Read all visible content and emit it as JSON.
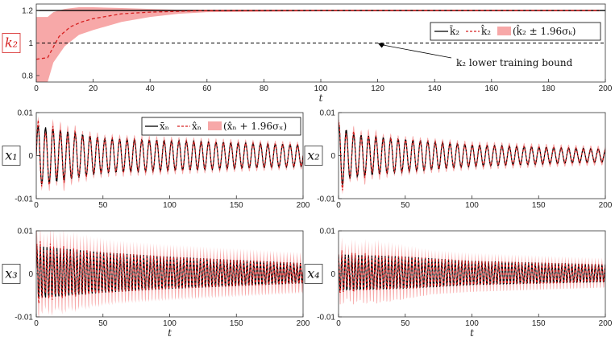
{
  "colors": {
    "truth": "#000000",
    "estimate": "#d62020",
    "band": "#f7a8a8",
    "axis": "#333333",
    "grid": "#d0d0d0"
  },
  "chart_data": [
    {
      "id": "k2",
      "type": "line",
      "ylabel": "k₂",
      "xlabel": "t",
      "xlim": [
        0,
        200
      ],
      "ylim": [
        0.76,
        1.24
      ],
      "xticks": [
        0,
        20,
        40,
        60,
        80,
        100,
        120,
        140,
        160,
        180,
        200
      ],
      "yticks": [
        0.8,
        1,
        1.2
      ],
      "ytick_labels": [
        "0.8",
        "1",
        "1.2"
      ],
      "grid": false,
      "legend_position": "top-right",
      "legend": [
        "k̄₂",
        "k̂₂",
        "(k̂₂ ± 1.96σₖ)"
      ],
      "series": [
        {
          "name": "k̄₂",
          "values": [
            [
              0,
              1.2
            ],
            [
              200,
              1.2
            ]
          ]
        },
        {
          "name": "k̂₂",
          "values": [
            [
              0,
              0.9
            ],
            [
              4,
              0.91
            ],
            [
              8,
              1.04
            ],
            [
              12,
              1.1
            ],
            [
              16,
              1.13
            ],
            [
              20,
              1.15
            ],
            [
              30,
              1.18
            ],
            [
              40,
              1.19
            ],
            [
              50,
              1.195
            ],
            [
              60,
              1.2
            ],
            [
              100,
              1.2
            ],
            [
              198,
              1.2
            ]
          ]
        }
      ],
      "band": [
        [
          0,
          0.76,
          1.16
        ],
        [
          4,
          0.76,
          1.16
        ],
        [
          6,
          0.88,
          1.19
        ],
        [
          10,
          0.98,
          1.21
        ],
        [
          15,
          1.05,
          1.22
        ],
        [
          20,
          1.08,
          1.22
        ],
        [
          30,
          1.13,
          1.215
        ],
        [
          40,
          1.16,
          1.21
        ],
        [
          50,
          1.18,
          1.205
        ],
        [
          60,
          1.19,
          1.205
        ],
        [
          100,
          1.195,
          1.205
        ],
        [
          198,
          1.195,
          1.205
        ]
      ],
      "reference": {
        "y": 1,
        "style": "dashed"
      },
      "annotation": {
        "text": "k₂ lower training bound",
        "x": 120,
        "y": 1.0
      }
    },
    {
      "id": "x1",
      "type": "line",
      "ylabel": "x₁",
      "xlabel": "",
      "xlim": [
        0,
        200
      ],
      "ylim": [
        -0.01,
        0.01
      ],
      "xticks": [
        0,
        50,
        100,
        150,
        200
      ],
      "yticks": [
        -0.01,
        0,
        0.01
      ],
      "ytick_labels": [
        "-0.01",
        "0",
        "0.01"
      ],
      "grid": false,
      "legend_position": "top-right",
      "legend": [
        "x̄ₙ",
        "x̂ₙ",
        "(x̂ₙ + 1.96σₓ)"
      ],
      "signal": {
        "freq": 0.18,
        "phase": 0.0,
        "amp": [
          [
            0,
            0.007
          ],
          [
            25,
            0.0055
          ],
          [
            50,
            0.004
          ],
          [
            100,
            0.0035
          ],
          [
            150,
            0.003
          ],
          [
            200,
            0.0025
          ]
        ],
        "band_half": [
          [
            0,
            0.0008
          ],
          [
            20,
            0.0022
          ],
          [
            35,
            0.0012
          ],
          [
            200,
            0.0008
          ]
        ]
      }
    },
    {
      "id": "x2",
      "type": "line",
      "ylabel": "x₂",
      "xlabel": "",
      "xlim": [
        0,
        200
      ],
      "ylim": [
        -0.01,
        0.01
      ],
      "xticks": [
        0,
        50,
        100,
        150,
        200
      ],
      "yticks": [
        -0.01,
        0,
        0.01
      ],
      "ytick_labels": [
        "-0.01",
        "0",
        "0.01"
      ],
      "grid": false,
      "signal": {
        "freq": 0.18,
        "phase": 1.3,
        "amp": [
          [
            0,
            0.0075
          ],
          [
            10,
            0.005
          ],
          [
            40,
            0.004
          ],
          [
            100,
            0.0025
          ],
          [
            200,
            0.0015
          ]
        ],
        "band_half": [
          [
            0,
            0.0008
          ],
          [
            20,
            0.0018
          ],
          [
            40,
            0.001
          ],
          [
            200,
            0.0008
          ]
        ]
      }
    },
    {
      "id": "x3",
      "type": "line",
      "ylabel": "x₃",
      "xlabel": "t",
      "xlim": [
        0,
        200
      ],
      "ylim": [
        -0.01,
        0.01
      ],
      "xticks": [
        0,
        50,
        100,
        150,
        200
      ],
      "yticks": [
        -0.01,
        0,
        0.01
      ],
      "ytick_labels": [
        "-0.01",
        "0",
        "0.01"
      ],
      "grid": false,
      "signal": {
        "freq": 0.4,
        "phase": 0.2,
        "amp": [
          [
            0,
            0.0065
          ],
          [
            50,
            0.005
          ],
          [
            100,
            0.004
          ],
          [
            200,
            0.0025
          ]
        ],
        "band_half": [
          [
            0,
            0.004
          ],
          [
            25,
            0.004
          ],
          [
            60,
            0.003
          ],
          [
            200,
            0.0025
          ]
        ]
      }
    },
    {
      "id": "x4",
      "type": "line",
      "ylabel": "x₄",
      "xlabel": "t",
      "xlim": [
        0,
        200
      ],
      "ylim": [
        -0.01,
        0.01
      ],
      "xticks": [
        0,
        50,
        100,
        150,
        200
      ],
      "yticks": [
        -0.01,
        0,
        0.01
      ],
      "ytick_labels": [
        "-0.01",
        "0",
        "0.01"
      ],
      "grid": false,
      "signal": {
        "freq": 0.4,
        "phase": 1.6,
        "amp": [
          [
            0,
            0.0045
          ],
          [
            50,
            0.004
          ],
          [
            100,
            0.003
          ],
          [
            200,
            0.0022
          ]
        ],
        "band_half": [
          [
            0,
            0.003
          ],
          [
            30,
            0.0035
          ],
          [
            70,
            0.002
          ],
          [
            200,
            0.0015
          ]
        ]
      }
    }
  ]
}
